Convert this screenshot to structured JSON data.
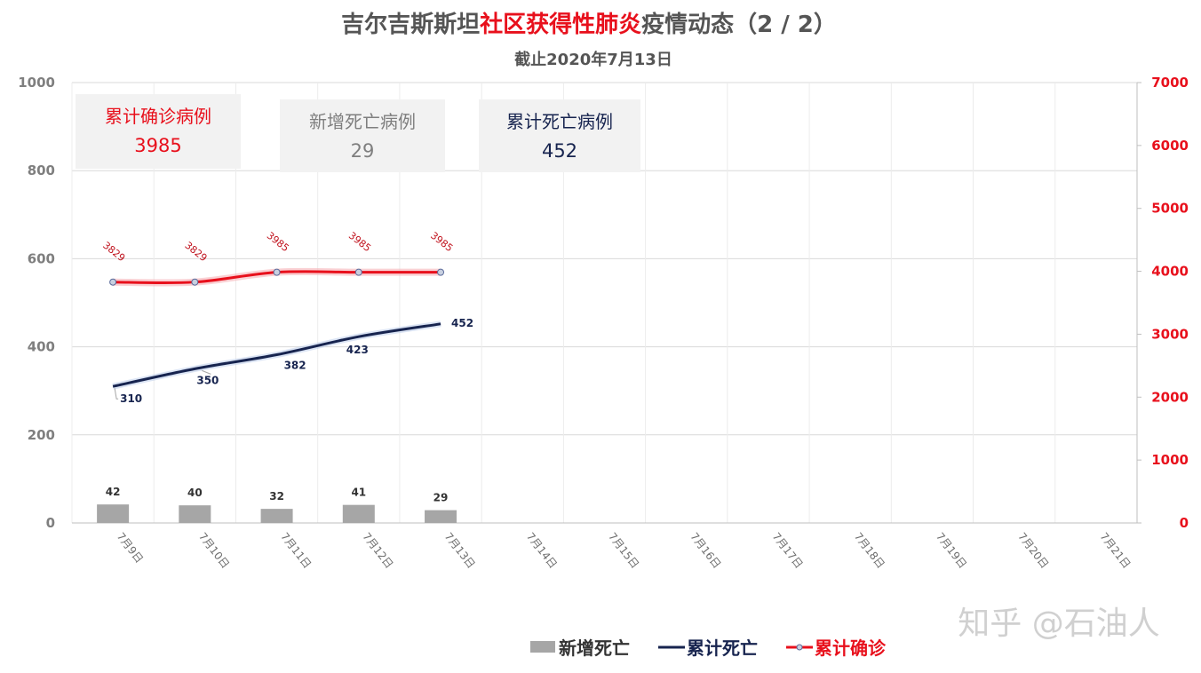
{
  "title": {
    "part1": "吉尔吉斯斯坦",
    "part2": "社区获得性肺炎",
    "part3": "疫情动态（2 / 2）",
    "subtitle": "截止2020年7月13日"
  },
  "cards": [
    {
      "label": "累计确诊病例",
      "value": "3985",
      "color": "#e8101c",
      "bg": "#f2f2f2"
    },
    {
      "label": "新增死亡病例",
      "value": "29",
      "color": "#7f7f7f",
      "bg": "#f2f2f2"
    },
    {
      "label": "累计死亡病例",
      "value": "452",
      "color": "#17244f",
      "bg": "#f2f2f2"
    }
  ],
  "legend": [
    {
      "label": "新增死亡",
      "color": "#a6a6a6"
    },
    {
      "label": "累计死亡",
      "color": "#17244f"
    },
    {
      "label": "累计确诊",
      "color": "#e8101c"
    }
  ],
  "watermark": "知乎 @石油人",
  "chart_data": {
    "type": "bar",
    "categories": [
      "7月9日",
      "7月10日",
      "7月11日",
      "7月12日",
      "7月13日",
      "7月14日",
      "7月15日",
      "7月16日",
      "7月17日",
      "7月18日",
      "7月19日",
      "7月20日",
      "7月21日"
    ],
    "series": [
      {
        "name": "新增死亡",
        "type": "bar",
        "axis": "left",
        "values": [
          42,
          40,
          32,
          41,
          29,
          null,
          null,
          null,
          null,
          null,
          null,
          null,
          null
        ]
      },
      {
        "name": "累计死亡",
        "type": "line",
        "axis": "left",
        "values": [
          310,
          350,
          382,
          423,
          452,
          null,
          null,
          null,
          null,
          null,
          null,
          null,
          null
        ]
      },
      {
        "name": "累计确诊",
        "type": "line",
        "axis": "right",
        "values": [
          3829,
          3829,
          3985,
          3985,
          3985,
          null,
          null,
          null,
          null,
          null,
          null,
          null,
          null
        ]
      }
    ],
    "yleft": {
      "min": 0,
      "max": 1000,
      "ticks": [
        "0",
        "200",
        "400",
        "600",
        "800",
        "1000"
      ]
    },
    "yright": {
      "min": 0,
      "max": 7000,
      "ticks": [
        "0",
        "1000",
        "2000",
        "3000",
        "4000",
        "5000",
        "6000",
        "7000"
      ]
    },
    "grid": true,
    "legend_position": "bottom",
    "colors": {
      "bar": "#a6a6a6",
      "death": "#17244f",
      "confirmed": "#e8101c"
    }
  }
}
